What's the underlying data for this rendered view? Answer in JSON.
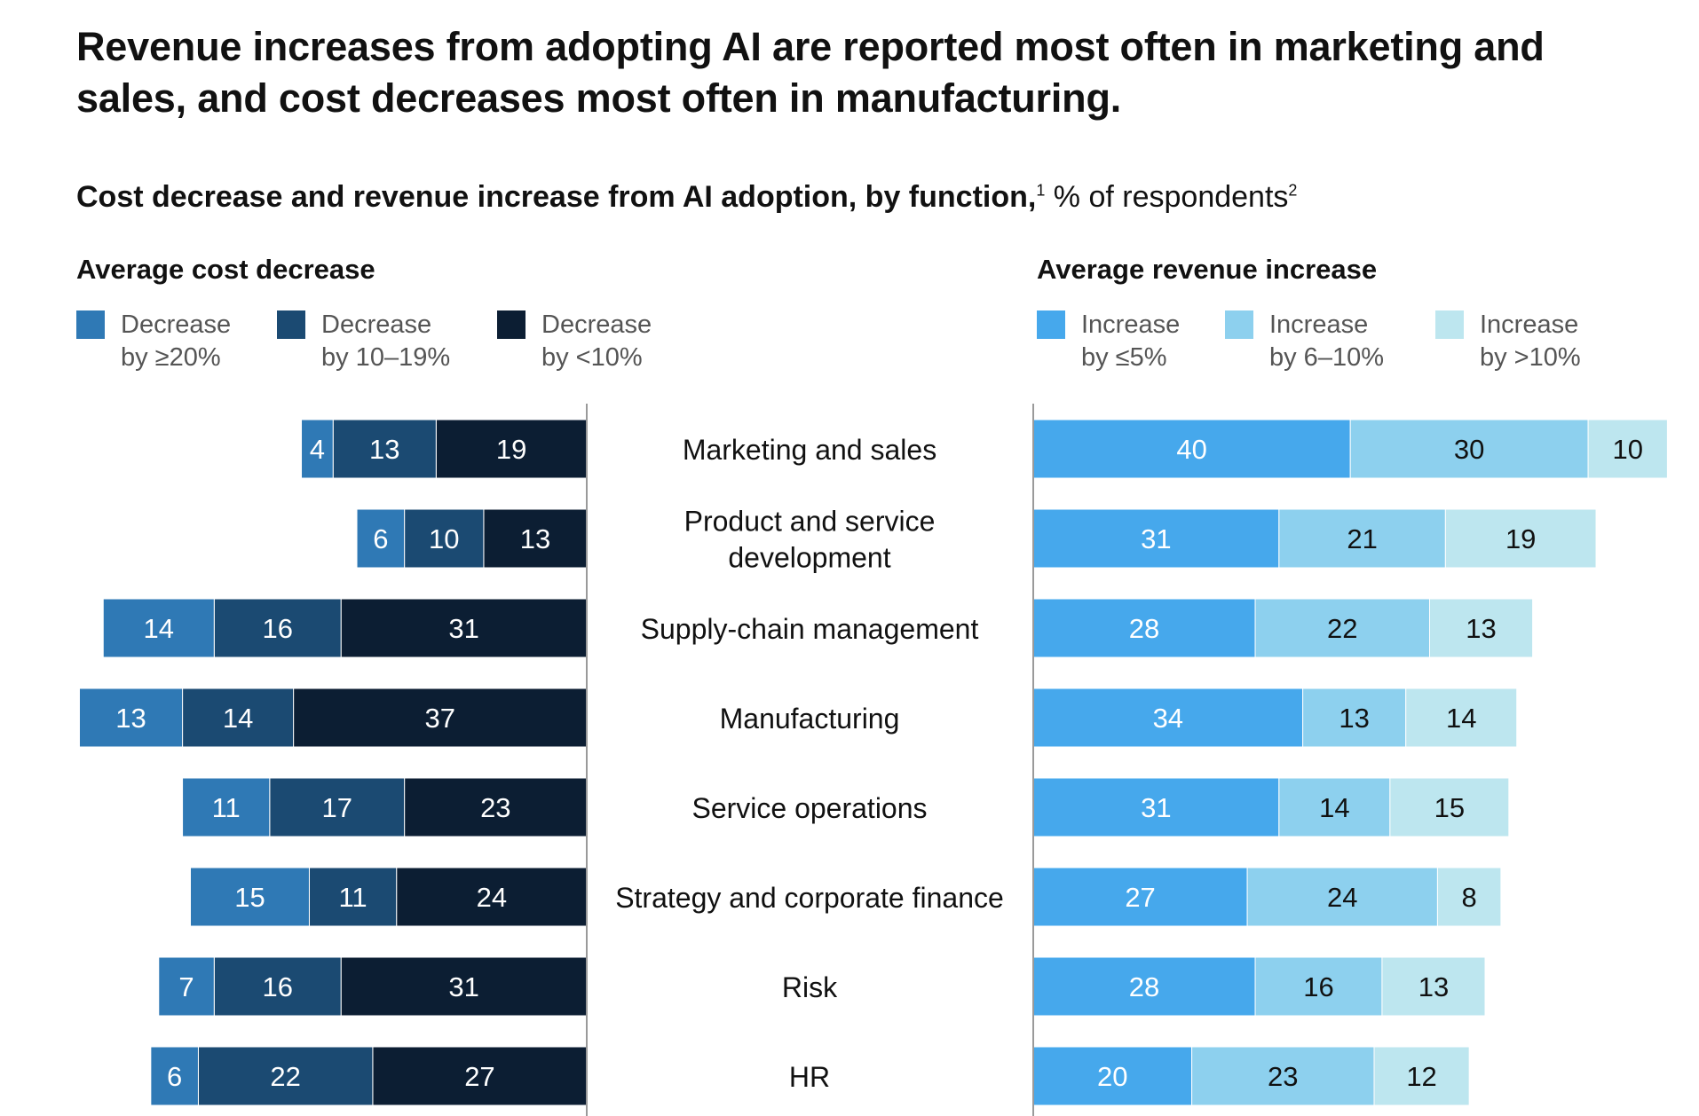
{
  "title": "Revenue increases from adopting AI are reported most often in marketing and sales, and cost decreases most often in manufacturing.",
  "subtitle": {
    "bold": "Cost decrease and revenue increase from AI adoption, by function,",
    "footnote1": "1",
    "rest": " % of respondents",
    "footnote2": "2"
  },
  "cost_panel": {
    "title": "Average cost decrease",
    "legend": [
      {
        "line1": "Decrease",
        "line2": "by ≥20%",
        "color": "#2f79b5"
      },
      {
        "line1": "Decrease",
        "line2": "by 10–19%",
        "color": "#1b4a72"
      },
      {
        "line1": "Decrease",
        "line2": "by <10%",
        "color": "#0c1e33"
      }
    ]
  },
  "revenue_panel": {
    "title": "Average revenue increase",
    "legend": [
      {
        "line1": "Increase",
        "line2": "by ≤5%",
        "color": "#46a8ec"
      },
      {
        "line1": "Increase",
        "line2": "by 6–10%",
        "color": "#8dd0ee"
      },
      {
        "line1": "Increase",
        "line2": "by >10%",
        "color": "#bde6ef"
      }
    ]
  },
  "chart_data": [
    {
      "type": "bar",
      "orientation": "horizontal",
      "stacked": true,
      "title": "Average cost decrease",
      "categories": [
        "Marketing and sales",
        "Product and service development",
        "Supply-chain management",
        "Manufacturing",
        "Service operations",
        "Strategy and corporate finance",
        "Risk",
        "HR"
      ],
      "series": [
        {
          "name": "Decrease by ≥20%",
          "color": "#2f79b5",
          "label_color": "#ffffff",
          "values": [
            4,
            6,
            14,
            13,
            11,
            15,
            7,
            6
          ]
        },
        {
          "name": "Decrease by 10–19%",
          "color": "#1b4a72",
          "label_color": "#ffffff",
          "values": [
            13,
            10,
            16,
            14,
            17,
            11,
            16,
            22
          ]
        },
        {
          "name": "Decrease by <10%",
          "color": "#0c1e33",
          "label_color": "#ffffff",
          "values": [
            19,
            13,
            31,
            37,
            23,
            24,
            31,
            27
          ]
        }
      ],
      "direction": "leftward"
    },
    {
      "type": "bar",
      "orientation": "horizontal",
      "stacked": true,
      "title": "Average revenue increase",
      "categories": [
        "Marketing and sales",
        "Product and service development",
        "Supply-chain management",
        "Manufacturing",
        "Service operations",
        "Strategy and corporate finance",
        "Risk",
        "HR"
      ],
      "series": [
        {
          "name": "Increase by ≤5%",
          "color": "#46a8ec",
          "label_color": "#ffffff",
          "values": [
            40,
            31,
            28,
            34,
            31,
            27,
            28,
            20
          ]
        },
        {
          "name": "Increase by 6–10%",
          "color": "#8dd0ee",
          "label_color": "#111111",
          "values": [
            30,
            21,
            22,
            13,
            14,
            24,
            16,
            23
          ]
        },
        {
          "name": "Increase by >10%",
          "color": "#bde6ef",
          "label_color": "#111111",
          "values": [
            10,
            19,
            13,
            14,
            15,
            8,
            13,
            12
          ]
        }
      ],
      "direction": "rightward"
    }
  ],
  "category_display_lines": [
    [
      "Marketing and sales"
    ],
    [
      "Product and service",
      "development"
    ],
    [
      "Supply-chain management"
    ],
    [
      "Manufacturing"
    ],
    [
      "Service operations"
    ],
    [
      "Strategy and corporate finance"
    ],
    [
      "Risk"
    ],
    [
      "HR"
    ]
  ]
}
